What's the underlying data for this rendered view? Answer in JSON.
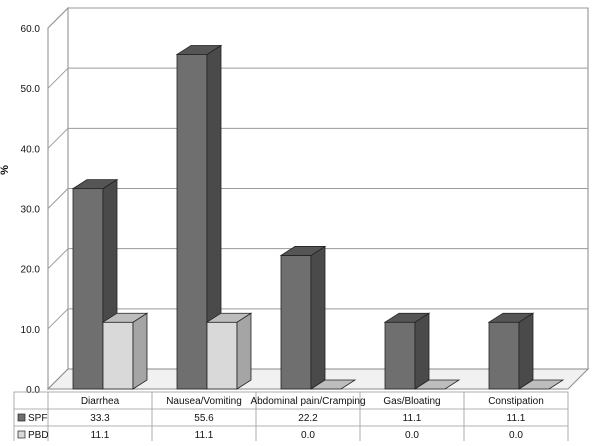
{
  "chart_data": {
    "type": "bar",
    "ylabel": "%",
    "ylim": [
      0,
      60
    ],
    "yticks": [
      0,
      10,
      20,
      30,
      40,
      50,
      60
    ],
    "ytick_labels": [
      "0.0",
      "10.0",
      "20.0",
      "30.0",
      "40.0",
      "50.0",
      "60.0"
    ],
    "categories": [
      "Diarrhea",
      "Nausea/Vomiting",
      "Abdominal pain/Cramping",
      "Gas/Bloating",
      "Constipation"
    ],
    "series": [
      {
        "name": "SPF",
        "values": [
          33.3,
          55.6,
          22.2,
          11.1,
          11.1
        ],
        "value_labels": [
          "33.3",
          "55.6",
          "22.2",
          "11.1",
          "11.1"
        ],
        "color": "#6f6f6f"
      },
      {
        "name": "PBD",
        "values": [
          11.1,
          11.1,
          0.0,
          0.0,
          0.0
        ],
        "value_labels": [
          "11.1",
          "11.1",
          "0.0",
          "0.0",
          "0.0"
        ],
        "color": "#d9d9d9"
      }
    ],
    "grid": true,
    "style": "3d-column with data table",
    "legend": "in data table"
  }
}
